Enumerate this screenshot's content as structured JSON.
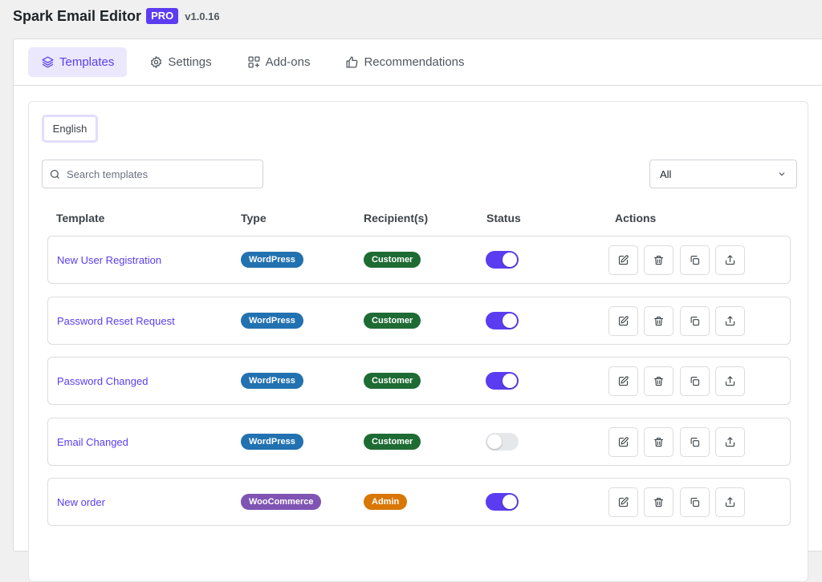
{
  "header": {
    "title": "Spark Email Editor",
    "badge": "PRO",
    "version": "v1.0.16"
  },
  "tabs": [
    {
      "label": "Templates",
      "icon": "layers-icon",
      "active": true
    },
    {
      "label": "Settings",
      "icon": "gear-icon",
      "active": false
    },
    {
      "label": "Add-ons",
      "icon": "add-ons-icon",
      "active": false
    },
    {
      "label": "Recommendations",
      "icon": "thumbs-up-icon",
      "active": false
    }
  ],
  "language": {
    "label": "English"
  },
  "search": {
    "placeholder": "Search templates",
    "value": ""
  },
  "filter": {
    "value": "All"
  },
  "columns": {
    "template": "Template",
    "type": "Type",
    "recipients": "Recipient(s)",
    "status": "Status",
    "actions": "Actions"
  },
  "colors": {
    "accent": "#5b3cf0",
    "wordpress": "#2271b1",
    "woocommerce": "#7f54b3",
    "customer": "#1e6b34",
    "admin": "#d97706"
  },
  "rows": [
    {
      "name": "New User Registration",
      "type": "WordPress",
      "recipient": "Customer",
      "enabled": true
    },
    {
      "name": "Password Reset Request",
      "type": "WordPress",
      "recipient": "Customer",
      "enabled": true
    },
    {
      "name": "Password Changed",
      "type": "WordPress",
      "recipient": "Customer",
      "enabled": true
    },
    {
      "name": "Email Changed",
      "type": "WordPress",
      "recipient": "Customer",
      "enabled": false
    },
    {
      "name": "New order",
      "type": "WooCommerce",
      "recipient": "Admin",
      "enabled": true
    }
  ],
  "action_icons": [
    "edit-icon",
    "trash-icon",
    "duplicate-icon",
    "export-icon"
  ]
}
